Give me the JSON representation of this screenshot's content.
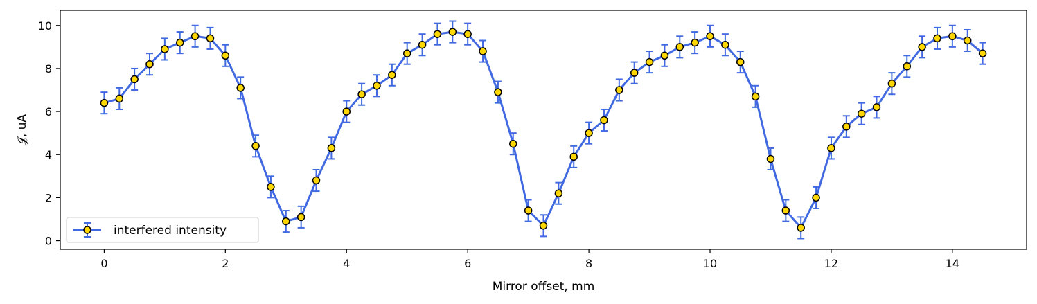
{
  "colors": {
    "line": "#4169e1",
    "marker_fill": "#ffd700",
    "marker_edge": "#000000"
  },
  "chart_data": {
    "type": "line",
    "title": "",
    "xlabel": "Mirror offset, mm",
    "ylabel": "𝒥, uA",
    "xlim": [
      -0.725,
      15.225
    ],
    "ylim": [
      -0.4,
      10.7
    ],
    "xticks": [
      0,
      2,
      4,
      6,
      8,
      10,
      12,
      14
    ],
    "yticks": [
      0,
      2,
      4,
      6,
      8,
      10
    ],
    "grid": false,
    "legend_position": "lower-left",
    "error_bar": 0.5,
    "series": [
      {
        "name": "interfered intensity",
        "x": [
          0,
          0.25,
          0.5,
          0.75,
          1,
          1.25,
          1.5,
          1.75,
          2,
          2.25,
          2.5,
          2.75,
          3,
          3.25,
          3.5,
          3.75,
          4,
          4.25,
          4.5,
          4.75,
          5,
          5.25,
          5.5,
          5.75,
          6,
          6.25,
          6.5,
          6.75,
          7,
          7.25,
          7.5,
          7.75,
          8,
          8.25,
          8.5,
          8.75,
          9,
          9.25,
          9.5,
          9.75,
          10,
          10.25,
          10.5,
          10.75,
          11,
          11.25,
          11.5,
          11.75,
          12,
          12.25,
          12.5,
          12.75,
          13,
          13.25,
          13.5,
          13.75,
          14,
          14.25,
          14.5
        ],
        "y": [
          6.4,
          6.6,
          7.5,
          8.2,
          8.9,
          9.2,
          9.5,
          9.4,
          8.6,
          7.1,
          4.4,
          2.5,
          0.9,
          1.1,
          2.8,
          4.3,
          6.0,
          6.8,
          7.2,
          7.7,
          8.7,
          9.1,
          9.6,
          9.7,
          9.6,
          8.8,
          6.9,
          4.5,
          1.4,
          0.7,
          2.2,
          3.9,
          5.0,
          5.6,
          7.0,
          7.8,
          8.3,
          8.6,
          9.0,
          9.2,
          9.5,
          9.1,
          8.3,
          6.7,
          3.8,
          1.4,
          0.6,
          2.0,
          4.3,
          5.3,
          5.9,
          6.2,
          7.3,
          8.1,
          9.0,
          9.4,
          9.5,
          9.3,
          8.7
        ]
      }
    ]
  }
}
